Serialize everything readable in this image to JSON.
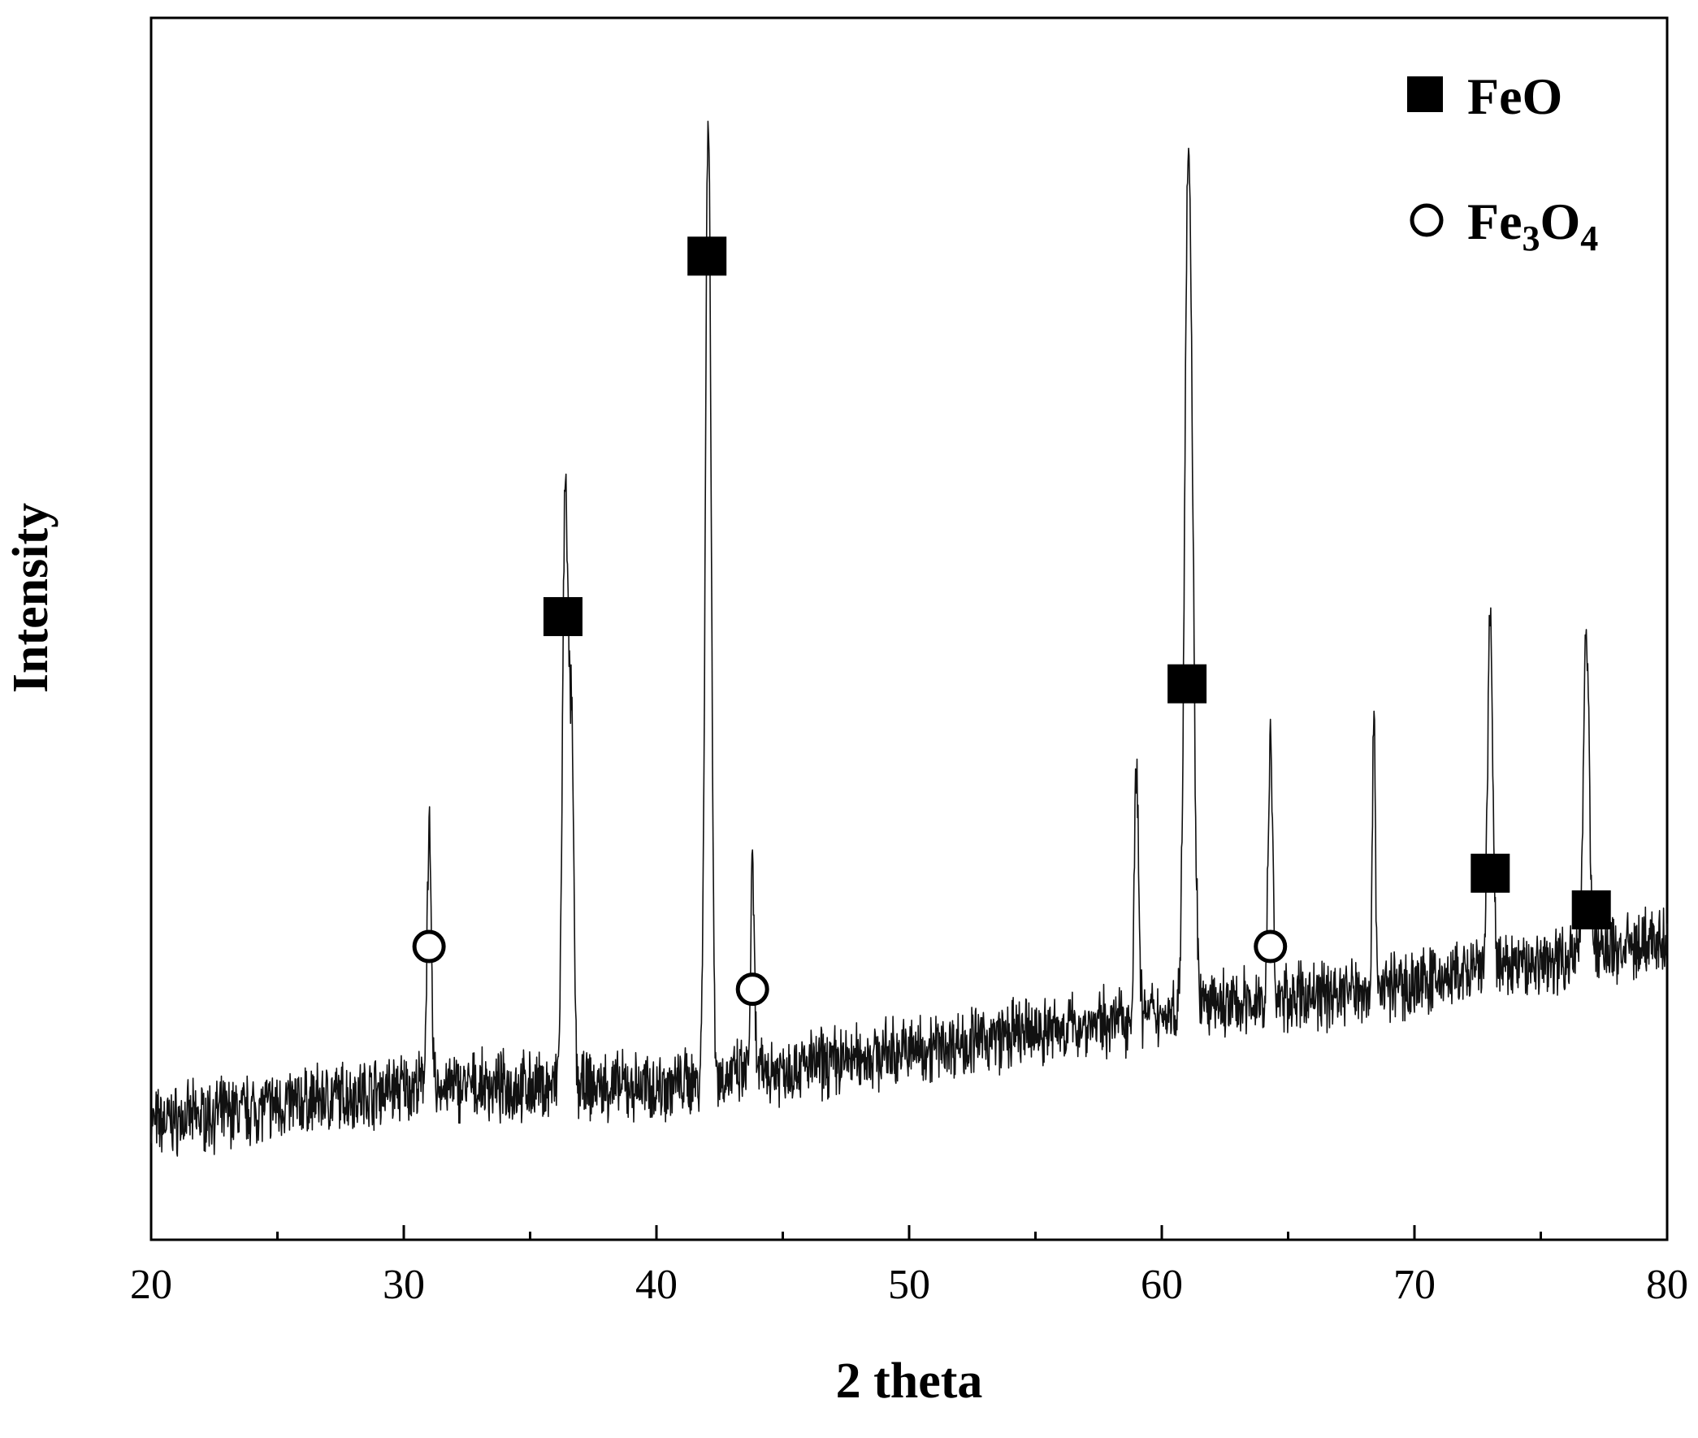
{
  "chart_data": {
    "type": "line",
    "title": "",
    "xlabel": "2 theta",
    "ylabel": "Intensity",
    "xlim": [
      20,
      80
    ],
    "ylim": [
      0,
      100
    ],
    "x_ticks": [
      20,
      30,
      40,
      50,
      60,
      70,
      80
    ],
    "x_minor_ticks": [
      25,
      35,
      45,
      55,
      65,
      75
    ],
    "y_ticks_shown": false,
    "grid": false,
    "legend_position": "top-right",
    "series": [
      {
        "baseline": [
          [
            20,
            9.5
          ],
          [
            30,
            12.5
          ],
          [
            40,
            12.5
          ],
          [
            50,
            15.5
          ],
          [
            60,
            18.5
          ],
          [
            70,
            21.0
          ],
          [
            80,
            24.5
          ]
        ],
        "noise_amplitude": 2.2,
        "peaks": [
          {
            "x": 31.0,
            "height": 20.5,
            "width": 0.12
          },
          {
            "x": 36.4,
            "height": 50.0,
            "width": 0.16
          },
          {
            "x": 36.65,
            "height": 26.0,
            "width": 0.12
          },
          {
            "x": 42.05,
            "height": 80.0,
            "width": 0.16
          },
          {
            "x": 43.8,
            "height": 16.5,
            "width": 0.1
          },
          {
            "x": 59.0,
            "height": 20.0,
            "width": 0.12
          },
          {
            "x": 61.0,
            "height": 45.0,
            "width": 0.18
          },
          {
            "x": 61.15,
            "height": 38.0,
            "width": 0.2
          },
          {
            "x": 64.3,
            "height": 21.5,
            "width": 0.12
          },
          {
            "x": 68.4,
            "height": 23.5,
            "width": 0.08
          },
          {
            "x": 73.0,
            "height": 29.0,
            "width": 0.14
          },
          {
            "x": 76.8,
            "height": 27.0,
            "width": 0.16
          }
        ]
      }
    ],
    "phases": [
      {
        "name": "FeO",
        "symbol": "filled-square",
        "markers": [
          [
            36.3,
            51.0
          ],
          [
            42.0,
            80.5
          ],
          [
            61.0,
            45.5
          ],
          [
            73.0,
            30.0
          ],
          [
            77.0,
            27.0
          ]
        ]
      },
      {
        "name": "Fe3O4",
        "display": [
          "Fe",
          "3",
          "O",
          "4"
        ],
        "symbol": "open-circle",
        "markers": [
          [
            31.0,
            24.0
          ],
          [
            43.8,
            20.5
          ],
          [
            64.3,
            24.0
          ]
        ]
      }
    ]
  }
}
